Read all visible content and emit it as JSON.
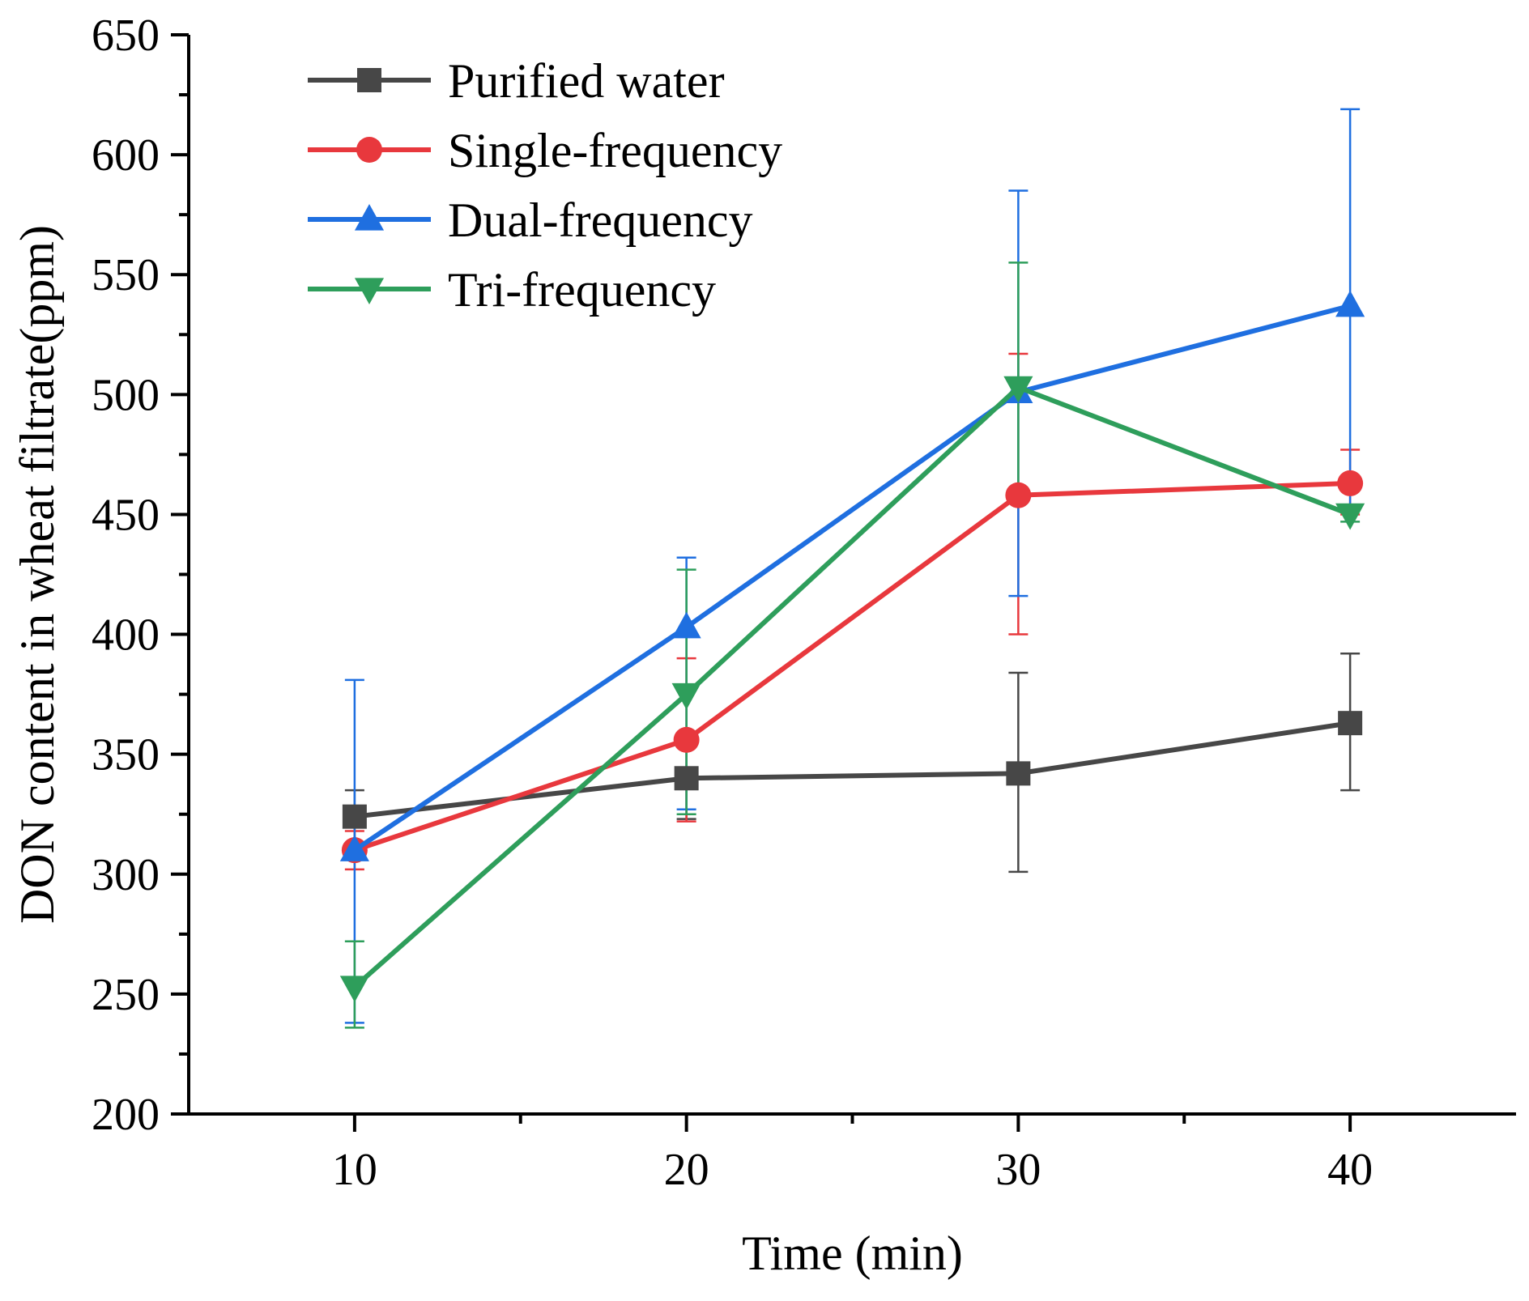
{
  "chart_data": {
    "type": "line",
    "title": "",
    "xlabel": "Time (min)",
    "ylabel": "DON content in wheat filtrate(ppm)",
    "xlim": [
      5,
      45
    ],
    "ylim": [
      200,
      650
    ],
    "x_ticks": [
      10,
      20,
      30,
      40
    ],
    "y_ticks": [
      200,
      250,
      300,
      350,
      400,
      450,
      500,
      550,
      600,
      650
    ],
    "x": [
      10,
      20,
      30,
      40
    ],
    "legend_position": "top-left",
    "grid": false,
    "series": [
      {
        "name": "Purified water",
        "color": "#474747",
        "marker": "square",
        "values": [
          324,
          340,
          342,
          363
        ],
        "err_low": [
          313,
          323,
          301,
          335
        ],
        "err_high": [
          335,
          357,
          384,
          392
        ]
      },
      {
        "name": "Single-frequency",
        "color": "#e8383d",
        "marker": "circle",
        "values": [
          310,
          356,
          458,
          463
        ],
        "err_low": [
          302,
          322,
          400,
          450
        ],
        "err_high": [
          318,
          390,
          517,
          477
        ]
      },
      {
        "name": "Dual-frequency",
        "color": "#1f6fe0",
        "marker": "triangle-up",
        "values": [
          310,
          403,
          501,
          537
        ],
        "err_low": [
          238,
          327,
          416,
          454
        ],
        "err_high": [
          381,
          432,
          585,
          619
        ]
      },
      {
        "name": "Tri-frequency",
        "color": "#2e9e5b",
        "marker": "triangle-down",
        "values": [
          253,
          375,
          503,
          450
        ],
        "err_low": [
          236,
          325,
          455,
          447
        ],
        "err_high": [
          272,
          427,
          555,
          453
        ]
      }
    ]
  }
}
